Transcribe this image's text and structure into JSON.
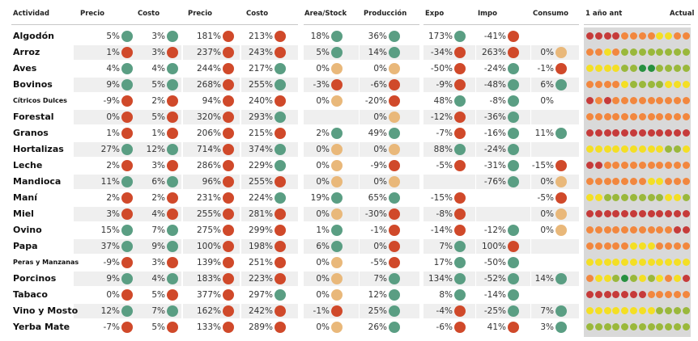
{
  "headers": {
    "actividad": "Actividad",
    "precio_a": "Precio",
    "costo_a": "Costo",
    "precio_b": "Precio",
    "costo_b": "Costo",
    "area_stock": "Area/Stock",
    "produccion": "Producción",
    "expo": "Expo",
    "impo": "Impo",
    "consumo": "Consumo",
    "trend_start": "1 año ant",
    "trend_end": "Actual"
  },
  "trend_colors": {
    "1": "#c63b3a",
    "2": "#f2873e",
    "3": "#f4df24",
    "4": "#9ab83b",
    "5": "#279040"
  },
  "rows": [
    {
      "name": "Algodón",
      "precio1": "5%",
      "d_precio1": "g",
      "costo1": "3%",
      "d_costo1": "g",
      "precio2": "181%",
      "d_precio2": "r",
      "costo2": "213%",
      "d_costo2": "r",
      "area": "18%",
      "d_area": "g",
      "prod": "36%",
      "d_prod": "g",
      "expo": "173%",
      "d_expo": "g",
      "impo": "-41%",
      "d_impo": "r",
      "cons": "",
      "d_cons": "",
      "trend": [
        1,
        1,
        1,
        1,
        2,
        2,
        2,
        2,
        3,
        3,
        2,
        2
      ]
    },
    {
      "name": "Arroz",
      "precio1": "1%",
      "d_precio1": "r",
      "costo1": "3%",
      "d_costo1": "r",
      "precio2": "237%",
      "d_precio2": "r",
      "costo2": "243%",
      "d_costo2": "r",
      "area": "5%",
      "d_area": "g",
      "prod": "14%",
      "d_prod": "g",
      "expo": "-34%",
      "d_expo": "r",
      "impo": "263%",
      "d_impo": "r",
      "cons": "0%",
      "d_cons": "o",
      "trend": [
        2,
        2,
        3,
        2,
        4,
        4,
        4,
        4,
        4,
        4,
        4,
        4
      ]
    },
    {
      "name": "Aves",
      "precio1": "4%",
      "d_precio1": "g",
      "costo1": "4%",
      "d_costo1": "g",
      "precio2": "244%",
      "d_precio2": "r",
      "costo2": "217%",
      "d_costo2": "g",
      "area": "0%",
      "d_area": "o",
      "prod": "0%",
      "d_prod": "o",
      "expo": "-50%",
      "d_expo": "r",
      "impo": "-24%",
      "d_impo": "g",
      "cons": "-1%",
      "d_cons": "r",
      "trend": [
        3,
        3,
        3,
        3,
        4,
        4,
        5,
        5,
        4,
        4,
        4,
        4
      ]
    },
    {
      "name": "Bovinos",
      "precio1": "9%",
      "d_precio1": "g",
      "costo1": "5%",
      "d_costo1": "g",
      "precio2": "268%",
      "d_precio2": "r",
      "costo2": "255%",
      "d_costo2": "g",
      "area": "-3%",
      "d_area": "r",
      "prod": "-6%",
      "d_prod": "r",
      "expo": "-9%",
      "d_expo": "r",
      "impo": "-48%",
      "d_impo": "g",
      "cons": "6%",
      "d_cons": "g",
      "trend": [
        2,
        2,
        2,
        2,
        3,
        4,
        4,
        4,
        4,
        3,
        3,
        3
      ]
    },
    {
      "name": "Cítricos Dulces",
      "small": true,
      "precio1": "-9%",
      "d_precio1": "r",
      "costo1": "2%",
      "d_costo1": "r",
      "precio2": "94%",
      "d_precio2": "r",
      "costo2": "240%",
      "d_costo2": "r",
      "area": "0%",
      "d_area": "o",
      "prod": "-20%",
      "d_prod": "r",
      "expo": "48%",
      "d_expo": "g",
      "impo": "-8%",
      "d_impo": "g",
      "cons": "0%",
      "d_cons": "",
      "trend": [
        1,
        2,
        1,
        2,
        2,
        2,
        2,
        2,
        2,
        2,
        2,
        2
      ]
    },
    {
      "name": "Forestal",
      "precio1": "0%",
      "d_precio1": "r",
      "costo1": "5%",
      "d_costo1": "r",
      "precio2": "320%",
      "d_precio2": "r",
      "costo2": "293%",
      "d_costo2": "g",
      "area": "",
      "d_area": "",
      "prod": "0%",
      "d_prod": "o",
      "expo": "-12%",
      "d_expo": "r",
      "impo": "-36%",
      "d_impo": "g",
      "cons": "",
      "d_cons": "",
      "trend": [
        2,
        2,
        2,
        2,
        2,
        2,
        2,
        2,
        2,
        2,
        2,
        2
      ]
    },
    {
      "name": "Granos",
      "precio1": "1%",
      "d_precio1": "r",
      "costo1": "1%",
      "d_costo1": "r",
      "precio2": "206%",
      "d_precio2": "r",
      "costo2": "215%",
      "d_costo2": "r",
      "area": "2%",
      "d_area": "g",
      "prod": "49%",
      "d_prod": "g",
      "expo": "-7%",
      "d_expo": "r",
      "impo": "-16%",
      "d_impo": "g",
      "cons": "11%",
      "d_cons": "g",
      "trend": [
        1,
        1,
        1,
        1,
        1,
        1,
        1,
        1,
        1,
        1,
        1,
        1
      ]
    },
    {
      "name": "Hortalizas",
      "precio1": "27%",
      "d_precio1": "g",
      "costo1": "12%",
      "d_costo1": "g",
      "precio2": "714%",
      "d_precio2": "r",
      "costo2": "374%",
      "d_costo2": "g",
      "area": "0%",
      "d_area": "o",
      "prod": "0%",
      "d_prod": "o",
      "expo": "88%",
      "d_expo": "g",
      "impo": "-24%",
      "d_impo": "g",
      "cons": "",
      "d_cons": "",
      "trend": [
        3,
        3,
        3,
        3,
        3,
        3,
        3,
        3,
        3,
        4,
        4,
        3
      ]
    },
    {
      "name": "Leche",
      "precio1": "2%",
      "d_precio1": "r",
      "costo1": "3%",
      "d_costo1": "r",
      "precio2": "286%",
      "d_precio2": "r",
      "costo2": "229%",
      "d_costo2": "g",
      "area": "0%",
      "d_area": "o",
      "prod": "-9%",
      "d_prod": "r",
      "expo": "-5%",
      "d_expo": "r",
      "impo": "-31%",
      "d_impo": "g",
      "cons": "-15%",
      "d_cons": "r",
      "trend": [
        1,
        1,
        2,
        2,
        2,
        2,
        2,
        2,
        2,
        2,
        2,
        2
      ]
    },
    {
      "name": "Mandioca",
      "precio1": "11%",
      "d_precio1": "g",
      "costo1": "6%",
      "d_costo1": "g",
      "precio2": "96%",
      "d_precio2": "r",
      "costo2": "255%",
      "d_costo2": "r",
      "area": "0%",
      "d_area": "o",
      "prod": "0%",
      "d_prod": "o",
      "expo": "",
      "d_expo": "",
      "impo": "-76%",
      "d_impo": "g",
      "cons": "0%",
      "d_cons": "o",
      "trend": [
        2,
        2,
        2,
        2,
        2,
        2,
        2,
        3,
        3,
        2,
        2,
        2
      ]
    },
    {
      "name": "Maní",
      "precio1": "2%",
      "d_precio1": "r",
      "costo1": "2%",
      "d_costo1": "r",
      "precio2": "231%",
      "d_precio2": "r",
      "costo2": "224%",
      "d_costo2": "g",
      "area": "19%",
      "d_area": "g",
      "prod": "65%",
      "d_prod": "g",
      "expo": "-15%",
      "d_expo": "r",
      "impo": "",
      "d_impo": "",
      "cons": "-5%",
      "d_cons": "r",
      "trend": [
        3,
        3,
        4,
        4,
        4,
        4,
        4,
        4,
        4,
        3,
        3,
        4
      ]
    },
    {
      "name": "Miel",
      "precio1": "3%",
      "d_precio1": "r",
      "costo1": "4%",
      "d_costo1": "r",
      "precio2": "255%",
      "d_precio2": "r",
      "costo2": "281%",
      "d_costo2": "r",
      "area": "0%",
      "d_area": "o",
      "prod": "-30%",
      "d_prod": "r",
      "expo": "-8%",
      "d_expo": "r",
      "impo": "",
      "d_impo": "",
      "cons": "0%",
      "d_cons": "o",
      "trend": [
        1,
        1,
        1,
        1,
        1,
        1,
        1,
        1,
        1,
        1,
        1,
        1
      ]
    },
    {
      "name": "Ovino",
      "precio1": "15%",
      "d_precio1": "g",
      "costo1": "7%",
      "d_costo1": "g",
      "precio2": "275%",
      "d_precio2": "r",
      "costo2": "299%",
      "d_costo2": "r",
      "area": "1%",
      "d_area": "g",
      "prod": "-1%",
      "d_prod": "r",
      "expo": "-14%",
      "d_expo": "r",
      "impo": "-12%",
      "d_impo": "g",
      "cons": "0%",
      "d_cons": "o",
      "trend": [
        2,
        2,
        2,
        2,
        2,
        2,
        2,
        2,
        2,
        2,
        1,
        1
      ]
    },
    {
      "name": "Papa",
      "precio1": "37%",
      "d_precio1": "g",
      "costo1": "9%",
      "d_costo1": "g",
      "precio2": "100%",
      "d_precio2": "r",
      "costo2": "198%",
      "d_costo2": "r",
      "area": "6%",
      "d_area": "g",
      "prod": "0%",
      "d_prod": "r",
      "expo": "7%",
      "d_expo": "g",
      "impo": "100%",
      "d_impo": "r",
      "cons": "",
      "d_cons": "",
      "trend": [
        2,
        2,
        2,
        2,
        2,
        3,
        3,
        3,
        2,
        2,
        2,
        2
      ]
    },
    {
      "name": "Peras y Manzanas",
      "small": true,
      "precio1": "-9%",
      "d_precio1": "r",
      "costo1": "3%",
      "d_costo1": "r",
      "precio2": "139%",
      "d_precio2": "r",
      "costo2": "251%",
      "d_costo2": "r",
      "area": "0%",
      "d_area": "o",
      "prod": "-5%",
      "d_prod": "r",
      "expo": "17%",
      "d_expo": "g",
      "impo": "-50%",
      "d_impo": "g",
      "cons": "",
      "d_cons": "",
      "trend": [
        3,
        3,
        3,
        3,
        3,
        3,
        3,
        3,
        3,
        3,
        3,
        3
      ]
    },
    {
      "name": "Porcinos",
      "precio1": "9%",
      "d_precio1": "g",
      "costo1": "4%",
      "d_costo1": "g",
      "precio2": "183%",
      "d_precio2": "r",
      "costo2": "223%",
      "d_costo2": "r",
      "area": "0%",
      "d_area": "o",
      "prod": "7%",
      "d_prod": "g",
      "expo": "134%",
      "d_expo": "g",
      "impo": "-52%",
      "d_impo": "g",
      "cons": "14%",
      "d_cons": "g",
      "trend": [
        2,
        3,
        3,
        4,
        5,
        4,
        3,
        4,
        3,
        2,
        3,
        1
      ]
    },
    {
      "name": "Tabaco",
      "precio1": "0%",
      "d_precio1": "r",
      "costo1": "5%",
      "d_costo1": "r",
      "precio2": "377%",
      "d_precio2": "r",
      "costo2": "297%",
      "d_costo2": "g",
      "area": "0%",
      "d_area": "o",
      "prod": "12%",
      "d_prod": "g",
      "expo": "8%",
      "d_expo": "g",
      "impo": "-14%",
      "d_impo": "g",
      "cons": "",
      "d_cons": "",
      "trend": [
        1,
        1,
        1,
        1,
        1,
        1,
        1,
        2,
        2,
        2,
        2,
        2
      ]
    },
    {
      "name": "Vino y Mosto",
      "precio1": "12%",
      "d_precio1": "g",
      "costo1": "7%",
      "d_costo1": "g",
      "precio2": "162%",
      "d_precio2": "r",
      "costo2": "242%",
      "d_costo2": "r",
      "area": "-1%",
      "d_area": "r",
      "prod": "25%",
      "d_prod": "g",
      "expo": "-4%",
      "d_expo": "r",
      "impo": "-25%",
      "d_impo": "g",
      "cons": "7%",
      "d_cons": "g",
      "trend": [
        3,
        3,
        3,
        3,
        3,
        3,
        3,
        3,
        4,
        4,
        4,
        4
      ]
    },
    {
      "name": "Yerba Mate",
      "precio1": "-7%",
      "d_precio1": "r",
      "costo1": "5%",
      "d_costo1": "r",
      "precio2": "133%",
      "d_precio2": "r",
      "costo2": "289%",
      "d_costo2": "r",
      "area": "0%",
      "d_area": "o",
      "prod": "26%",
      "d_prod": "g",
      "expo": "-6%",
      "d_expo": "r",
      "impo": "41%",
      "d_impo": "r",
      "cons": "3%",
      "d_cons": "g",
      "trend": [
        4,
        4,
        4,
        4,
        4,
        4,
        4,
        4,
        4,
        4,
        4,
        4
      ]
    }
  ]
}
